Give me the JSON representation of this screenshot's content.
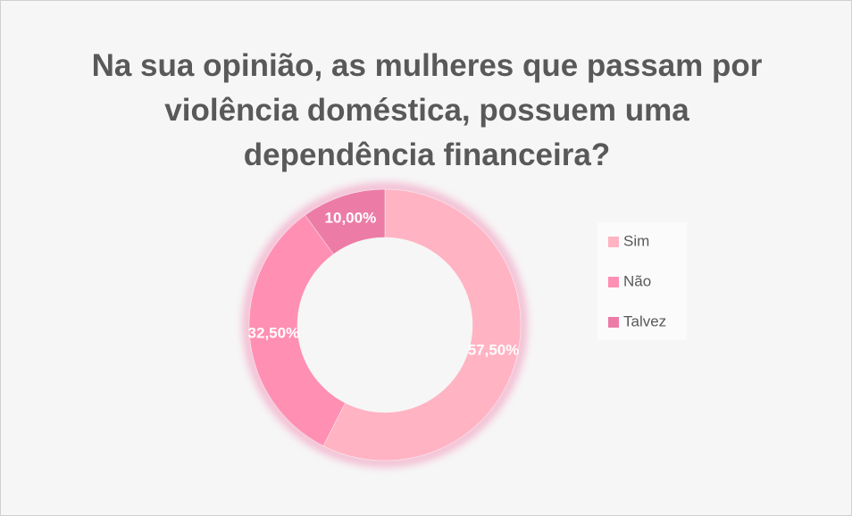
{
  "chart_data": {
    "type": "donut",
    "title": "Na sua opinião, as mulheres que passam por violência doméstica, possuem uma dependência financeira?",
    "categories": [
      "Sim",
      "Não",
      "Talvez"
    ],
    "values": [
      57.5,
      32.5,
      10
    ],
    "value_labels": [
      "57,50%",
      "32,50%",
      "10,00%"
    ],
    "colors": [
      "#ffb3c3",
      "#ff8fb3",
      "#ec7ca6"
    ],
    "legend": "right"
  }
}
